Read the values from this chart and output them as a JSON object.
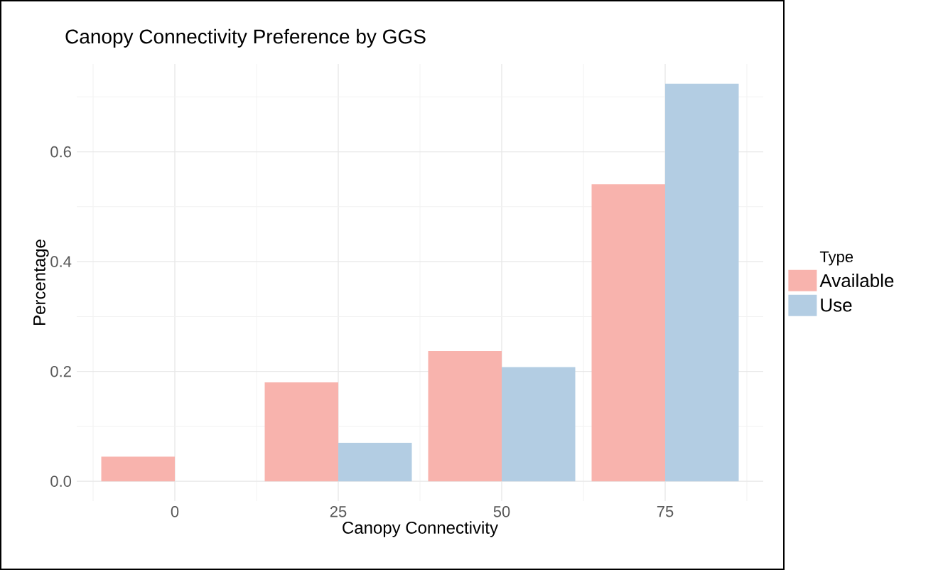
{
  "chart_data": {
    "type": "bar",
    "title": "Canopy Connectivity Preference by GGS",
    "xlabel": "Canopy Connectivity",
    "ylabel": "Percentage",
    "legend_title": "Type",
    "categories": [
      "0",
      "25",
      "50",
      "75"
    ],
    "series": [
      {
        "name": "Available",
        "color": "#f8b3ad",
        "values": [
          0.045,
          0.18,
          0.237,
          0.541
        ]
      },
      {
        "name": "Use",
        "color": "#b3cde3",
        "values": [
          0,
          0.07,
          0.208,
          0.724
        ]
      }
    ],
    "ylim": [
      -0.036,
      0.76
    ],
    "yticks": [
      {
        "value": 0,
        "label": "0.0"
      },
      {
        "value": 0.2,
        "label": "0.2"
      },
      {
        "value": 0.4,
        "label": "0.4"
      },
      {
        "value": 0.6,
        "label": "0.6"
      }
    ],
    "grid": true,
    "legend": "right"
  }
}
